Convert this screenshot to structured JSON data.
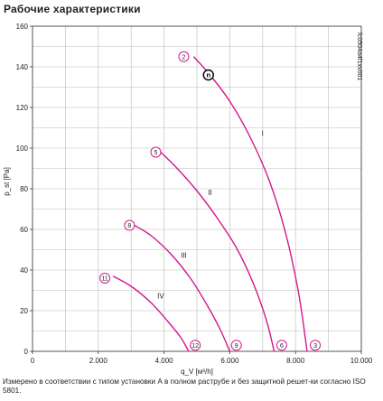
{
  "page": {
    "title": "Рабочие характеристики",
    "footnote": "Измерено в соответствии с типом установки А в полном раструбе и без защитной решет-ки согласно ISO 5801."
  },
  "colors": {
    "curve": "#d4178d",
    "grid": "#bbbbbb",
    "axis": "#333333",
    "text": "#222222"
  },
  "chart_data": {
    "type": "line",
    "xlabel": "q_V [м³/h]",
    "ylabel": "p_st [Pa]",
    "xlim": [
      0,
      10000
    ],
    "ylim": [
      0,
      160
    ],
    "x_ticks": [
      0,
      2000,
      4000,
      6000,
      8000,
      10000
    ],
    "x_tick_labels": [
      "0",
      "2.000",
      "4.000",
      "6.000",
      "8.000",
      "10.000"
    ],
    "y_ticks": [
      0,
      20,
      40,
      60,
      80,
      100,
      120,
      140,
      160
    ],
    "y_tick_labels": [
      "0",
      "20",
      "40",
      "60",
      "80",
      "100",
      "120",
      "140",
      "160"
    ],
    "grid": true,
    "watermark": "fc0504a4f1xv001",
    "series": [
      {
        "name": "I",
        "x": [
          4900,
          5400,
          6000,
          6600,
          7200,
          7700,
          8100,
          8350
        ],
        "y": [
          145,
          136,
          123,
          106,
          84,
          58,
          28,
          0
        ]
      },
      {
        "name": "II",
        "x": [
          3900,
          4400,
          5000,
          5600,
          6200,
          6700,
          7100,
          7350
        ],
        "y": [
          98,
          90,
          79,
          66,
          51,
          34,
          16,
          0
        ]
      },
      {
        "name": "III",
        "x": [
          3100,
          3600,
          4200,
          4800,
          5300,
          5700,
          6000
        ],
        "y": [
          62,
          57,
          48,
          36,
          23,
          11,
          0
        ]
      },
      {
        "name": "IV",
        "x": [
          2450,
          3000,
          3600,
          4100,
          4500,
          4750
        ],
        "y": [
          37,
          32,
          24,
          15,
          7,
          0
        ]
      }
    ],
    "series_labels": [
      {
        "text": "I",
        "x": 7000,
        "y": 106
      },
      {
        "text": "II",
        "x": 5400,
        "y": 77
      },
      {
        "text": "III",
        "x": 4600,
        "y": 46
      },
      {
        "text": "IV",
        "x": 3900,
        "y": 26
      }
    ],
    "markers": [
      {
        "label": "2",
        "x": 4600,
        "y": 145
      },
      {
        "label": "5",
        "x": 3750,
        "y": 98
      },
      {
        "label": "8",
        "x": 2950,
        "y": 62
      },
      {
        "label": "11",
        "x": 2200,
        "y": 36
      },
      {
        "label": "12",
        "x": 4950,
        "y": 3
      },
      {
        "label": "9",
        "x": 6200,
        "y": 3
      },
      {
        "label": "6",
        "x": 7580,
        "y": 3
      },
      {
        "label": "3",
        "x": 8600,
        "y": 3
      }
    ],
    "operating_point": {
      "label": "n",
      "x": 5350,
      "y": 136
    }
  }
}
